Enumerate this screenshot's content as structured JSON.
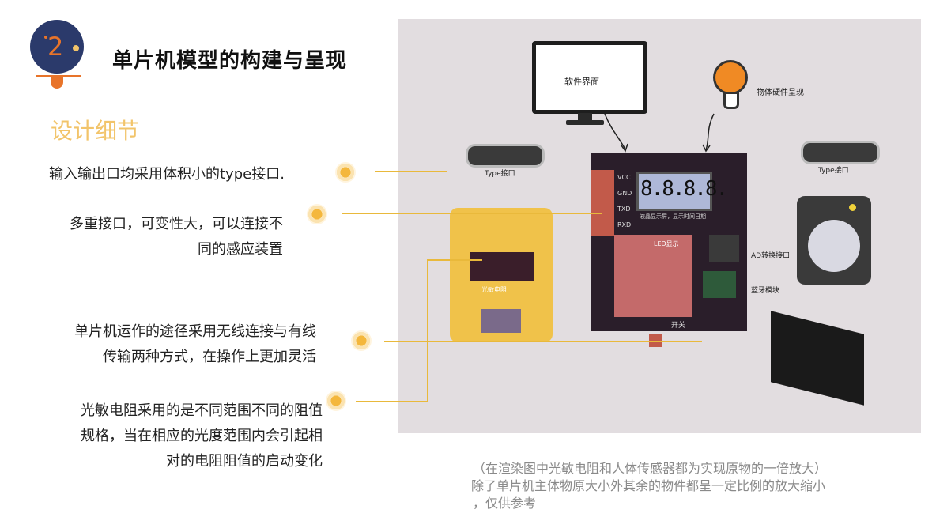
{
  "header": {
    "badge_number": "2",
    "title": "单片机模型的构建与呈现"
  },
  "section": {
    "subtitle": "设计细节"
  },
  "notes": [
    {
      "lines": [
        "输入输出口均采用体积小的type接口."
      ]
    },
    {
      "lines": [
        "多重接口，可变性大，可以连接不",
        "同的感应装置"
      ]
    },
    {
      "lines": [
        "单片机运作的途径采用无线连接与有线",
        "传输两种方式，在操作上更加灵活"
      ]
    },
    {
      "lines": [
        "光敏电阻采用的是不同范围不同的阻值",
        "规格，当在相应的光度范围内会引起相",
        "对的电阻阻值的启动变化"
      ]
    }
  ],
  "render": {
    "monitor_label": "软件界面",
    "hardware_label": "物体硬件呈现",
    "type_port_left": "Type接口",
    "type_port_right": "Type接口",
    "pins": [
      "VCC",
      "GND",
      "TXD",
      "RXD"
    ],
    "lcd_digits": "8.8.8.8.",
    "lcd_caption": "液晶显示屏，显示时间日期",
    "led_label": "LED显示",
    "ad_label": "AD转换接口",
    "bt_label": "蓝牙模块",
    "switch_label": "开关",
    "sensor_label": "光敏电阻"
  },
  "caption": {
    "lines": [
      "（在渲染图中光敏电阻和人体传感器都为实现原物的一倍放大）",
      "除了单片机主体物原大小外其余的物件都呈一定比例的放大缩小",
      "，仅供参考"
    ]
  },
  "colors": {
    "accent": "#e9b93b",
    "subtitle": "#f2c46a",
    "badge_navy": "#2b3a6b",
    "badge_orange": "#e8742a",
    "board": "#2a1e2a",
    "panel_bg": "#e2dde0"
  }
}
